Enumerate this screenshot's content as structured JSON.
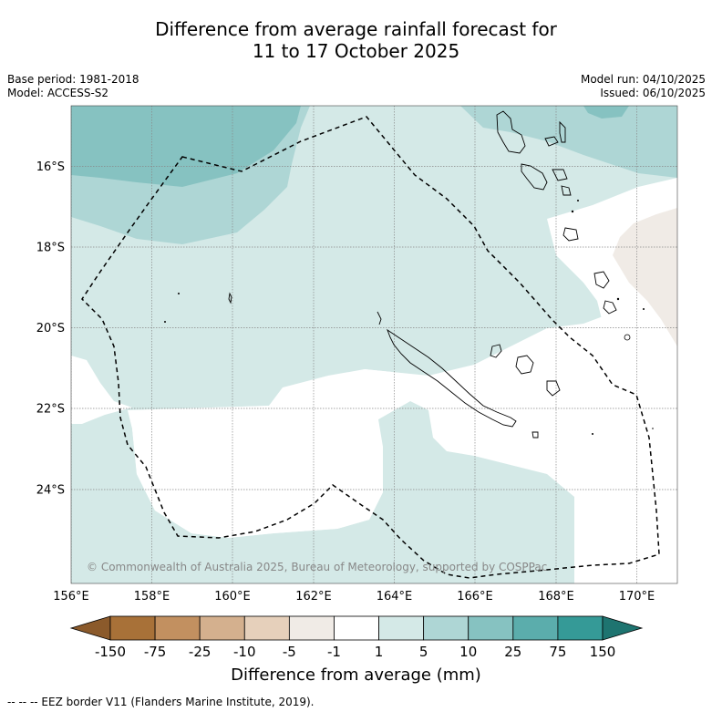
{
  "title_line1": "Difference from average rainfall forecast for",
  "title_line2": "11 to 17 October 2025",
  "meta_left": [
    "Base period: 1981-2018",
    "Model: ACCESS-S2"
  ],
  "meta_right": [
    "Model run: 04/10/2025",
    "Issued: 06/10/2025"
  ],
  "copyright": "© Commonwealth of Australia 2025, Bureau of Meteorology, supported by COSPPac",
  "lon_labels": [
    "156°E",
    "158°E",
    "160°E",
    "162°E",
    "164°E",
    "166°E",
    "168°E",
    "170°E"
  ],
  "lat_labels": [
    "16°S",
    "18°S",
    "20°S",
    "22°S",
    "24°S"
  ],
  "colorbar": {
    "labels": [
      "-150",
      "-75",
      "-25",
      "-10",
      "-5",
      "-1",
      "1",
      "5",
      "10",
      "25",
      "75",
      "150"
    ],
    "colors": [
      "#8b5a2b",
      "#a87138",
      "#c29060",
      "#d4b08e",
      "#e6d0bb",
      "#f0ebe6",
      "#ffffff",
      "#d4e9e7",
      "#aed6d5",
      "#86c2c1",
      "#5badac",
      "#359a97",
      "#1e7470"
    ],
    "title": "Difference from average (mm)"
  },
  "footer": "--  --  -- EEZ border V11 (Flanders Marine Institute, 2019)."
}
